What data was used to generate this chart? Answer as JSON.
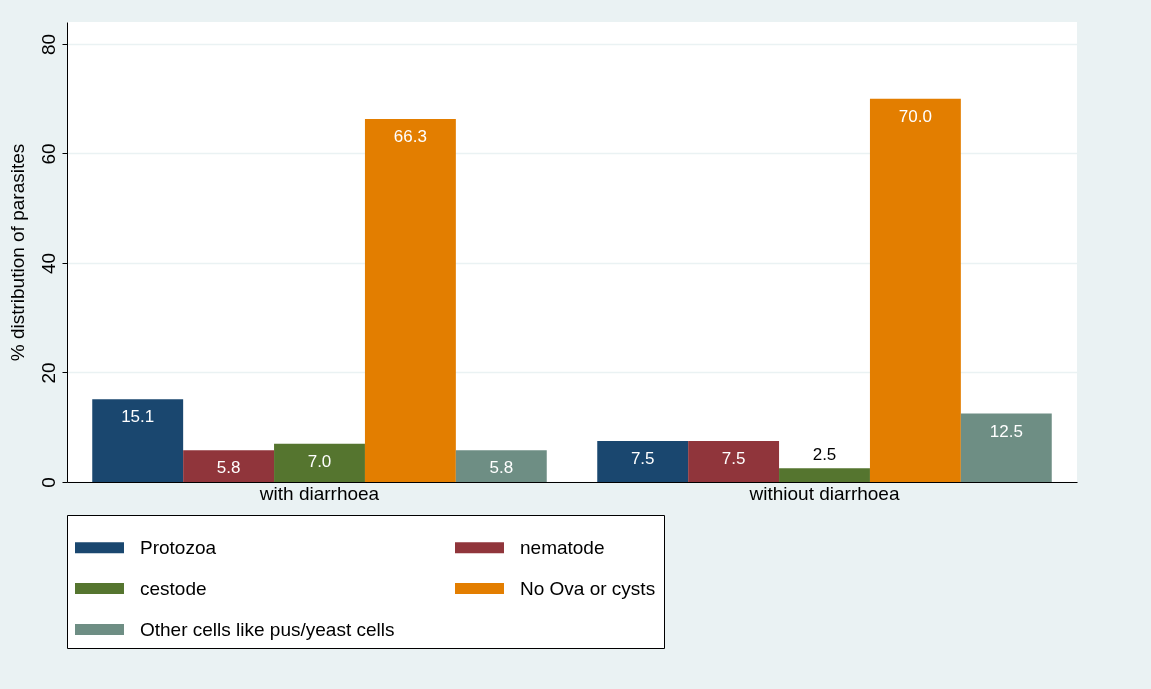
{
  "chart_data": {
    "type": "bar",
    "ylabel": "% distribution of parasites",
    "categories": [
      "with diarrhoea",
      "withiout diarrhoea"
    ],
    "series": [
      {
        "name": "Protozoa",
        "color": "#1a476f",
        "values": [
          15.1,
          7.5
        ],
        "value_labels": [
          "15.1",
          "7.5"
        ]
      },
      {
        "name": "nematode",
        "color": "#90353b",
        "values": [
          5.8,
          7.5
        ],
        "value_labels": [
          "5.8",
          "7.5"
        ]
      },
      {
        "name": "cestode",
        "color": "#55752f",
        "values": [
          7.0,
          2.5
        ],
        "value_labels": [
          "7.0",
          "2.5"
        ]
      },
      {
        "name": "No Ova or cysts",
        "color": "#e37e00",
        "values": [
          66.3,
          70.0
        ],
        "value_labels": [
          "66.3",
          "70.0"
        ]
      },
      {
        "name": "Other cells like pus/yeast cells",
        "color": "#6e8e84",
        "values": [
          5.8,
          12.5
        ],
        "value_labels": [
          "5.8",
          "12.5"
        ]
      }
    ],
    "ylim": [
      0,
      84
    ],
    "yticks": [
      0,
      20,
      40,
      60,
      80
    ],
    "grid": "y",
    "legend": "bottom"
  }
}
